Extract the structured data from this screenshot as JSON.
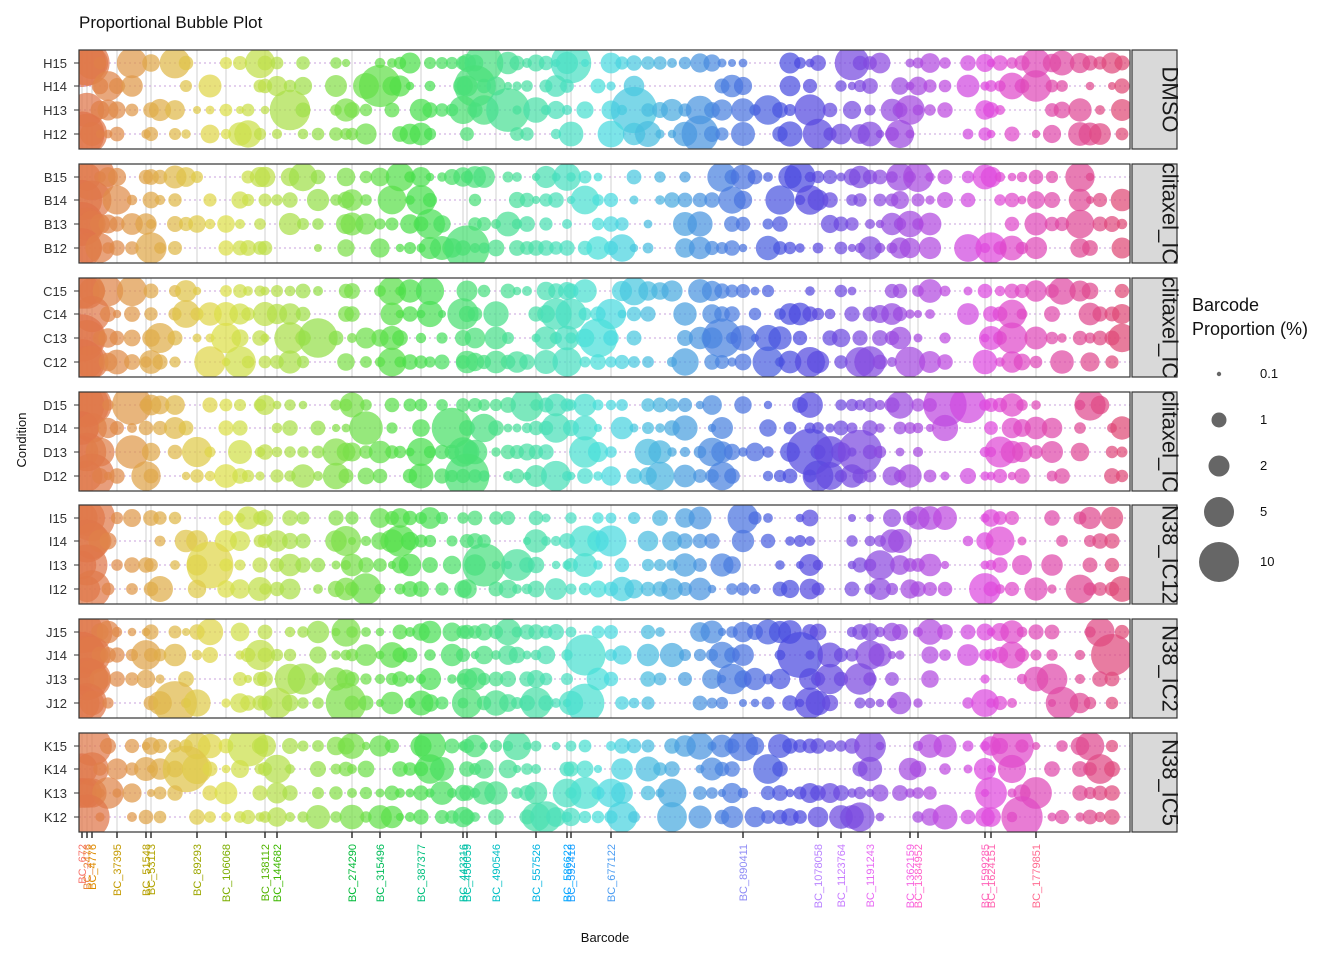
{
  "chart_data": {
    "type": "scatter",
    "title": "Proportional Bubble Plot",
    "xlabel": "Barcode",
    "ylabel": "Condition",
    "grid": true,
    "legend": {
      "title": "Barcode\nProportion (%)",
      "placement": "right",
      "size_breaks": [
        0.1,
        1,
        2,
        5,
        10
      ],
      "size_labels": [
        "0.1",
        "1",
        "2",
        "5",
        "10"
      ]
    },
    "x_tick_labels": [
      {
        "label": "BC_672",
        "color": "#F8766D"
      },
      {
        "label": "BC_2476",
        "color": "#E8853A"
      },
      {
        "label": "BC_4776",
        "color": "#DE8C00"
      },
      {
        "label": "BC_37395",
        "color": "#C49A00"
      },
      {
        "label": "BC_51548",
        "color": "#B79F00"
      },
      {
        "label": "BC_53113",
        "color": "#B1A300"
      },
      {
        "label": "BC_89293",
        "color": "#9CA700"
      },
      {
        "label": "BC_106068",
        "color": "#7CAE00"
      },
      {
        "label": "BC_138112",
        "color": "#53B400"
      },
      {
        "label": "BC_144682",
        "color": "#3DB800"
      },
      {
        "label": "BC_274290",
        "color": "#00BA38"
      },
      {
        "label": "BC_315496",
        "color": "#00BC59"
      },
      {
        "label": "BC_387377",
        "color": "#00BF7D"
      },
      {
        "label": "BC_443316",
        "color": "#00C0A3"
      },
      {
        "label": "BC_450059",
        "color": "#00C1AA"
      },
      {
        "label": "BC_490546",
        "color": "#00BFC4"
      },
      {
        "label": "BC_557526",
        "color": "#00B4E1"
      },
      {
        "label": "BC_586622",
        "color": "#00A9FF"
      },
      {
        "label": "BC_592418",
        "color": "#1FA0FF"
      },
      {
        "label": "BC_677122",
        "color": "#4E9EF2"
      },
      {
        "label": "BC_890411",
        "color": "#8F8CF5"
      },
      {
        "label": "BC_1078058",
        "color": "#B983FF"
      },
      {
        "label": "BC_1123764",
        "color": "#C77CFF"
      },
      {
        "label": "BC_1191243",
        "color": "#E76BF3"
      },
      {
        "label": "BC_1362159",
        "color": "#F564E3"
      },
      {
        "label": "BC_1384952",
        "color": "#FF61C9"
      },
      {
        "label": "BC_1599285",
        "color": "#FF62BC"
      },
      {
        "label": "BC_1624151",
        "color": "#FF64B0"
      },
      {
        "label": "BC_1779851",
        "color": "#FF6C91"
      }
    ],
    "facets": [
      {
        "strip": "DMSO",
        "rows": [
          "H15",
          "H14",
          "H13",
          "H12"
        ]
      },
      {
        "strip": "clitaxel_IC",
        "rows": [
          "B15",
          "B14",
          "B13",
          "B12"
        ]
      },
      {
        "strip": "clitaxel_IC",
        "rows": [
          "C15",
          "C14",
          "C13",
          "C12"
        ]
      },
      {
        "strip": "clitaxel_IC",
        "rows": [
          "D15",
          "D14",
          "D13",
          "D12"
        ]
      },
      {
        "strip": "N38_IC12",
        "rows": [
          "I15",
          "I14",
          "I13",
          "I12"
        ]
      },
      {
        "strip": "N38_IC2",
        "rows": [
          "J15",
          "J14",
          "J13",
          "J12"
        ]
      },
      {
        "strip": "N38_IC5",
        "rows": [
          "K15",
          "K14",
          "K13",
          "K12"
        ]
      }
    ],
    "note_values": "Each row contains bubbles at approximately 60 barcodes; bubble size encodes barcode proportion (%) from 0.1 to ~10."
  }
}
